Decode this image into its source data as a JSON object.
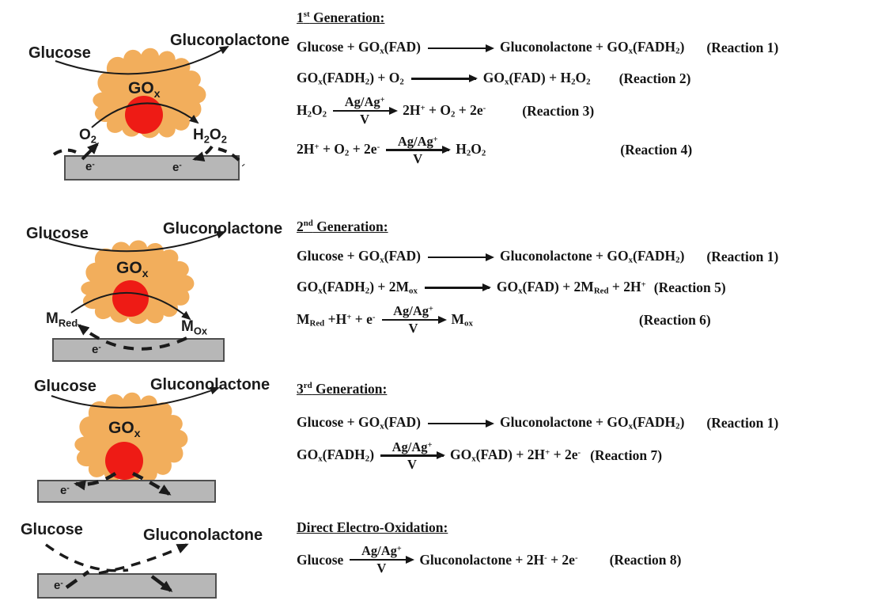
{
  "colors": {
    "enzyme_blob": "#F2AE5C",
    "fad_center": "#EE1B15",
    "electrode_fill": "#B7B7B7",
    "electrode_border": "#4F4F4F",
    "ink": "#1B1B1B"
  },
  "catalyst": {
    "top": "Ag/Ag^{+}",
    "bottom": "V"
  },
  "diagrams": [
    {
      "substrate": "Glucose",
      "product": "Gluconolactone",
      "enzyme": "GO_{x}",
      "left_species": "O_{2}",
      "right_species": "H_{2}O_{2}",
      "electron_left": "e^{-}",
      "electron_right": "e^{-}"
    },
    {
      "substrate": "Glucose",
      "product": "Gluconolactone",
      "enzyme": "GO_{x}",
      "left_species": "M_{Red}",
      "right_species": "M_{Ox}",
      "electron_left": "e^{-}"
    },
    {
      "substrate": "Glucose",
      "product": "Gluconolactone",
      "enzyme": "GO_{x}",
      "electron_left": "e^{-}"
    },
    {
      "substrate": "Glucose",
      "product": "Gluconolactone",
      "electron_left": "e^{-}"
    }
  ],
  "sections": [
    {
      "title": "1^{st} Generation:",
      "reactions": [
        {
          "lhs": "Glucose + GO_{x}(FAD)",
          "arrow": "plain",
          "rhs": "Gluconolactone + GO_{x}(FADH_{2})",
          "label": "(Reaction 1)"
        },
        {
          "lhs": "GO_{x}(FADH_{2}) + O_{2}",
          "arrow": "plain",
          "rhs": "GO_{x}(FAD) + H_{2}O_{2}",
          "label": "(Reaction 2)"
        },
        {
          "lhs": "H_{2}O_{2}",
          "arrow": "catalyst",
          "rhs": "2H^{+} + O_{2} + 2e^{-}",
          "label": "(Reaction 3)"
        },
        {
          "lhs": "2H^{+} + O_{2} + 2e^{-}",
          "arrow": "catalyst",
          "rhs": "H_{2}O_{2}",
          "label": "(Reaction 4)"
        }
      ]
    },
    {
      "title": "2^{nd} Generation:",
      "reactions": [
        {
          "lhs": "Glucose + GO_{x}(FAD)",
          "arrow": "plain",
          "rhs": "Gluconolactone + GO_{x}(FADH_{2})",
          "label": "(Reaction 1)"
        },
        {
          "lhs": "GO_{x}(FADH_{2}) + 2M_{ox}",
          "arrow": "plain",
          "rhs": "GO_{x}(FAD) + 2M_{Red} + 2H^{+}",
          "label": "(Reaction 5)"
        },
        {
          "lhs": "M_{Red} +H^{+} + e^{-}",
          "arrow": "catalyst",
          "rhs": "M_{ox}",
          "label": "(Reaction 6)"
        }
      ]
    },
    {
      "title": "3^{rd} Generation:",
      "reactions": [
        {
          "lhs": "Glucose + GO_{x}(FAD)",
          "arrow": "plain",
          "rhs": "Gluconolactone + GO_{x}(FADH_{2})",
          "label": "(Reaction 1)"
        },
        {
          "lhs": "GO_{x}(FADH_{2})",
          "arrow": "catalyst",
          "rhs": "GO_{x}(FAD) + 2H^{+} + 2e^{-}",
          "label": "(Reaction 7)"
        }
      ]
    },
    {
      "title": "Direct Electro-Oxidation:",
      "reactions": [
        {
          "lhs": "Glucose",
          "arrow": "catalyst",
          "rhs": "Gluconolactone + 2H^{-} + 2e^{-}",
          "label": "(Reaction 8)"
        }
      ]
    }
  ]
}
